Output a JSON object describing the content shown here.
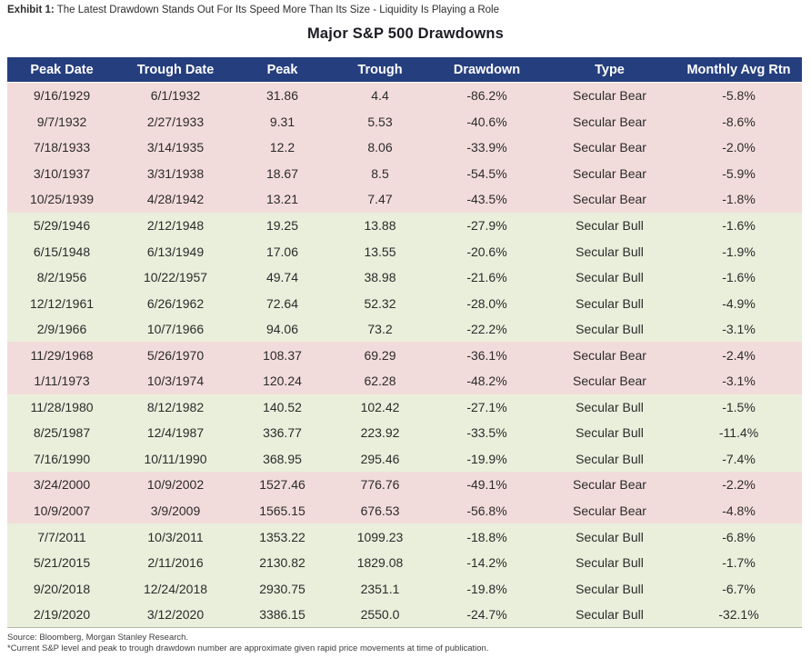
{
  "exhibit": {
    "label": "Exhibit 1:",
    "text": "The Latest Drawdown Stands Out For Its Speed More Than Its Size - Liquidity Is Playing a Role"
  },
  "title": "Major S&P 500 Drawdowns",
  "colors": {
    "header_bg": "#253e7e",
    "header_text": "#ffffff",
    "bear_row_bg": "#f2dcdb",
    "bull_row_bg": "#e9efdb",
    "cell_text": "#2b2b2b"
  },
  "chart_data": {
    "type": "table",
    "title": "Major S&P 500 Drawdowns",
    "columns": [
      "Peak Date",
      "Trough Date",
      "Peak",
      "Trough",
      "Drawdown",
      "Type",
      "Monthly Avg Rtn"
    ],
    "row_shading_rule": "Secular Bear rows shaded pink (#f2dcdb), Secular Bull rows shaded light green (#e9efdb)",
    "rows": [
      {
        "peak_date": "9/16/1929",
        "trough_date": "6/1/1932",
        "peak": "31.86",
        "trough": "4.4",
        "drawdown": "-86.2%",
        "type": "Secular Bear",
        "monthly_avg_rtn": "-5.8%"
      },
      {
        "peak_date": "9/7/1932",
        "trough_date": "2/27/1933",
        "peak": "9.31",
        "trough": "5.53",
        "drawdown": "-40.6%",
        "type": "Secular Bear",
        "monthly_avg_rtn": "-8.6%"
      },
      {
        "peak_date": "7/18/1933",
        "trough_date": "3/14/1935",
        "peak": "12.2",
        "trough": "8.06",
        "drawdown": "-33.9%",
        "type": "Secular Bear",
        "monthly_avg_rtn": "-2.0%"
      },
      {
        "peak_date": "3/10/1937",
        "trough_date": "3/31/1938",
        "peak": "18.67",
        "trough": "8.5",
        "drawdown": "-54.5%",
        "type": "Secular Bear",
        "monthly_avg_rtn": "-5.9%"
      },
      {
        "peak_date": "10/25/1939",
        "trough_date": "4/28/1942",
        "peak": "13.21",
        "trough": "7.47",
        "drawdown": "-43.5%",
        "type": "Secular Bear",
        "monthly_avg_rtn": "-1.8%"
      },
      {
        "peak_date": "5/29/1946",
        "trough_date": "2/12/1948",
        "peak": "19.25",
        "trough": "13.88",
        "drawdown": "-27.9%",
        "type": "Secular Bull",
        "monthly_avg_rtn": "-1.6%"
      },
      {
        "peak_date": "6/15/1948",
        "trough_date": "6/13/1949",
        "peak": "17.06",
        "trough": "13.55",
        "drawdown": "-20.6%",
        "type": "Secular Bull",
        "monthly_avg_rtn": "-1.9%"
      },
      {
        "peak_date": "8/2/1956",
        "trough_date": "10/22/1957",
        "peak": "49.74",
        "trough": "38.98",
        "drawdown": "-21.6%",
        "type": "Secular Bull",
        "monthly_avg_rtn": "-1.6%"
      },
      {
        "peak_date": "12/12/1961",
        "trough_date": "6/26/1962",
        "peak": "72.64",
        "trough": "52.32",
        "drawdown": "-28.0%",
        "type": "Secular Bull",
        "monthly_avg_rtn": "-4.9%"
      },
      {
        "peak_date": "2/9/1966",
        "trough_date": "10/7/1966",
        "peak": "94.06",
        "trough": "73.2",
        "drawdown": "-22.2%",
        "type": "Secular Bull",
        "monthly_avg_rtn": "-3.1%"
      },
      {
        "peak_date": "11/29/1968",
        "trough_date": "5/26/1970",
        "peak": "108.37",
        "trough": "69.29",
        "drawdown": "-36.1%",
        "type": "Secular Bear",
        "monthly_avg_rtn": "-2.4%"
      },
      {
        "peak_date": "1/11/1973",
        "trough_date": "10/3/1974",
        "peak": "120.24",
        "trough": "62.28",
        "drawdown": "-48.2%",
        "type": "Secular Bear",
        "monthly_avg_rtn": "-3.1%"
      },
      {
        "peak_date": "11/28/1980",
        "trough_date": "8/12/1982",
        "peak": "140.52",
        "trough": "102.42",
        "drawdown": "-27.1%",
        "type": "Secular Bull",
        "monthly_avg_rtn": "-1.5%"
      },
      {
        "peak_date": "8/25/1987",
        "trough_date": "12/4/1987",
        "peak": "336.77",
        "trough": "223.92",
        "drawdown": "-33.5%",
        "type": "Secular Bull",
        "monthly_avg_rtn": "-11.4%"
      },
      {
        "peak_date": "7/16/1990",
        "trough_date": "10/11/1990",
        "peak": "368.95",
        "trough": "295.46",
        "drawdown": "-19.9%",
        "type": "Secular Bull",
        "monthly_avg_rtn": "-7.4%"
      },
      {
        "peak_date": "3/24/2000",
        "trough_date": "10/9/2002",
        "peak": "1527.46",
        "trough": "776.76",
        "drawdown": "-49.1%",
        "type": "Secular Bear",
        "monthly_avg_rtn": "-2.2%"
      },
      {
        "peak_date": "10/9/2007",
        "trough_date": "3/9/2009",
        "peak": "1565.15",
        "trough": "676.53",
        "drawdown": "-56.8%",
        "type": "Secular Bear",
        "monthly_avg_rtn": "-4.8%"
      },
      {
        "peak_date": "7/7/2011",
        "trough_date": "10/3/2011",
        "peak": "1353.22",
        "trough": "1099.23",
        "drawdown": "-18.8%",
        "type": "Secular Bull",
        "monthly_avg_rtn": "-6.8%"
      },
      {
        "peak_date": "5/21/2015",
        "trough_date": "2/11/2016",
        "peak": "2130.82",
        "trough": "1829.08",
        "drawdown": "-14.2%",
        "type": "Secular Bull",
        "monthly_avg_rtn": "-1.7%"
      },
      {
        "peak_date": "9/20/2018",
        "trough_date": "12/24/2018",
        "peak": "2930.75",
        "trough": "2351.1",
        "drawdown": "-19.8%",
        "type": "Secular Bull",
        "monthly_avg_rtn": "-6.7%"
      },
      {
        "peak_date": "2/19/2020",
        "trough_date": "3/12/2020",
        "peak": "3386.15",
        "trough": "2550.0",
        "drawdown": "-24.7%",
        "type": "Secular Bull",
        "monthly_avg_rtn": "-32.1%"
      }
    ]
  },
  "footer": {
    "source": "Source: Bloomberg, Morgan Stanley Research.",
    "note": "*Current S&P level and peak to trough drawdown number are approximate given rapid price movements at time of publication."
  }
}
